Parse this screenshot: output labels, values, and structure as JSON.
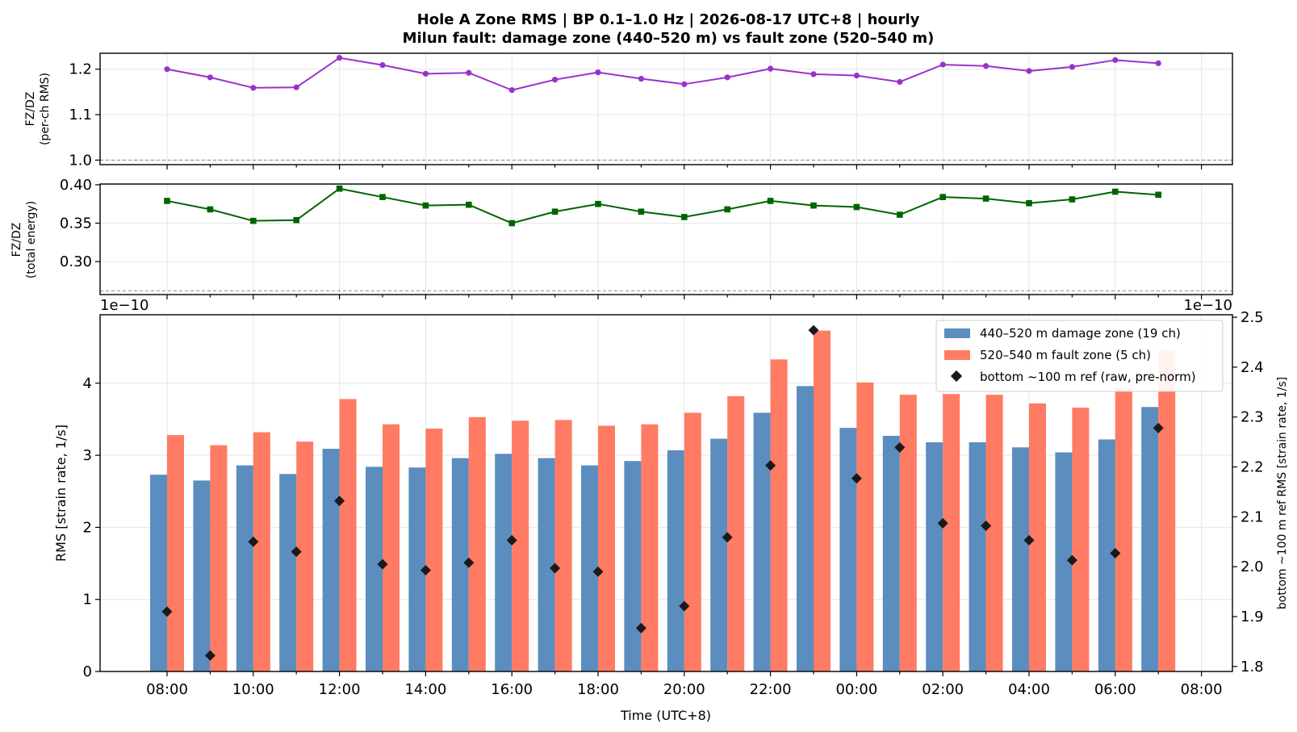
{
  "title_line1": "Hole A Zone RMS  |  BP 0.1–1.0 Hz  |  2026-08-17 UTC+8  |  hourly",
  "title_line2": "Milun fault: damage zone (440–520 m) vs fault zone (520–540 m)",
  "colors": {
    "ratio_rms": "#9932CC",
    "ratio_energy": "#006400",
    "damage_zone": "#5B8DBE",
    "fault_zone": "#FF7B63",
    "reference": "#1a1a1a",
    "grid": "#e6e6e6",
    "refline": "#888888"
  },
  "chart_data": [
    {
      "type": "line",
      "ylabel_line1": "FZ/DZ",
      "ylabel_line2": "(per-ch RMS)",
      "ylim": [
        0.99,
        1.235
      ],
      "yticks": [
        "1.0",
        "1.1",
        "1.2"
      ],
      "yticks_values": [
        1.0,
        1.1,
        1.2
      ],
      "reference_line": 1.0,
      "x": [
        "08:00",
        "09:00",
        "10:00",
        "11:00",
        "12:00",
        "13:00",
        "14:00",
        "15:00",
        "16:00",
        "17:00",
        "18:00",
        "19:00",
        "20:00",
        "21:00",
        "22:00",
        "23:00",
        "00:00",
        "01:00",
        "02:00",
        "03:00",
        "04:00",
        "05:00",
        "06:00",
        "07:00"
      ],
      "values": [
        1.2,
        1.182,
        1.159,
        1.16,
        1.225,
        1.209,
        1.19,
        1.192,
        1.154,
        1.177,
        1.193,
        1.179,
        1.167,
        1.182,
        1.201,
        1.189,
        1.186,
        1.172,
        1.21,
        1.207,
        1.196,
        1.205,
        1.22,
        1.213
      ]
    },
    {
      "type": "line",
      "ylabel_line1": "FZ/DZ",
      "ylabel_line2": "(total energy)",
      "ylim": [
        0.257,
        0.401
      ],
      "yticks": [
        "0.30",
        "0.35",
        "0.40"
      ],
      "yticks_values": [
        0.3,
        0.35,
        0.4
      ],
      "reference_line": 0.262,
      "x": [
        "08:00",
        "09:00",
        "10:00",
        "11:00",
        "12:00",
        "13:00",
        "14:00",
        "15:00",
        "16:00",
        "17:00",
        "18:00",
        "19:00",
        "20:00",
        "21:00",
        "22:00",
        "23:00",
        "00:00",
        "01:00",
        "02:00",
        "03:00",
        "04:00",
        "05:00",
        "06:00",
        "07:00"
      ],
      "values": [
        0.379,
        0.368,
        0.353,
        0.354,
        0.395,
        0.384,
        0.373,
        0.374,
        0.35,
        0.365,
        0.375,
        0.365,
        0.358,
        0.368,
        0.379,
        0.373,
        0.371,
        0.361,
        0.384,
        0.382,
        0.376,
        0.381,
        0.391,
        0.387
      ]
    },
    {
      "type": "bar",
      "xlabel": "Time (UTC+8)",
      "ylabel": "RMS  [strain rate, 1/s]",
      "ylabel_right": "bottom ~100 m ref RMS  [strain rate, 1/s]",
      "offset_left": "1e−10",
      "offset_right": "1e−10",
      "ylim": [
        0,
        4.95
      ],
      "ylim_right": [
        1.79,
        2.505
      ],
      "yticks": [
        "0",
        "1",
        "2",
        "3",
        "4"
      ],
      "yticks_values": [
        0,
        1,
        2,
        3,
        4
      ],
      "yticks_right": [
        "1.8",
        "1.9",
        "2.0",
        "2.1",
        "2.2",
        "2.3",
        "2.4",
        "2.5"
      ],
      "yticks_right_values": [
        1.8,
        1.9,
        2.0,
        2.1,
        2.2,
        2.3,
        2.4,
        2.5
      ],
      "xticks": [
        "08:00",
        "10:00",
        "12:00",
        "14:00",
        "16:00",
        "18:00",
        "20:00",
        "22:00",
        "00:00",
        "02:00",
        "04:00",
        "06:00",
        "08:00"
      ],
      "categories": [
        "08:00",
        "09:00",
        "10:00",
        "11:00",
        "12:00",
        "13:00",
        "14:00",
        "15:00",
        "16:00",
        "17:00",
        "18:00",
        "19:00",
        "20:00",
        "21:00",
        "22:00",
        "23:00",
        "00:00",
        "01:00",
        "02:00",
        "03:00",
        "04:00",
        "05:00",
        "06:00",
        "07:00"
      ],
      "series": [
        {
          "name": "440–520 m  damage zone (19 ch)",
          "values": [
            2.73,
            2.65,
            2.86,
            2.74,
            3.09,
            2.84,
            2.83,
            2.96,
            3.02,
            2.96,
            2.86,
            2.92,
            3.07,
            3.23,
            3.59,
            3.96,
            3.38,
            3.27,
            3.18,
            3.18,
            3.11,
            3.04,
            3.22,
            3.67
          ]
        },
        {
          "name": "520–540 m  fault zone (5 ch)",
          "values": [
            3.28,
            3.14,
            3.32,
            3.19,
            3.78,
            3.43,
            3.37,
            3.53,
            3.48,
            3.49,
            3.41,
            3.43,
            3.59,
            3.82,
            4.33,
            4.73,
            4.01,
            3.84,
            3.85,
            3.84,
            3.72,
            3.66,
            3.93,
            4.46
          ]
        },
        {
          "name": "bottom ~100 m ref (raw, pre-norm)",
          "axis": "right",
          "values": [
            1.91,
            1.822,
            2.05,
            2.03,
            2.132,
            2.005,
            1.993,
            2.008,
            2.053,
            1.997,
            1.99,
            1.877,
            1.921,
            2.059,
            2.203,
            2.474,
            2.177,
            2.239,
            2.087,
            2.082,
            2.053,
            2.013,
            2.027,
            2.278
          ]
        }
      ],
      "legend": "top-right"
    }
  ]
}
